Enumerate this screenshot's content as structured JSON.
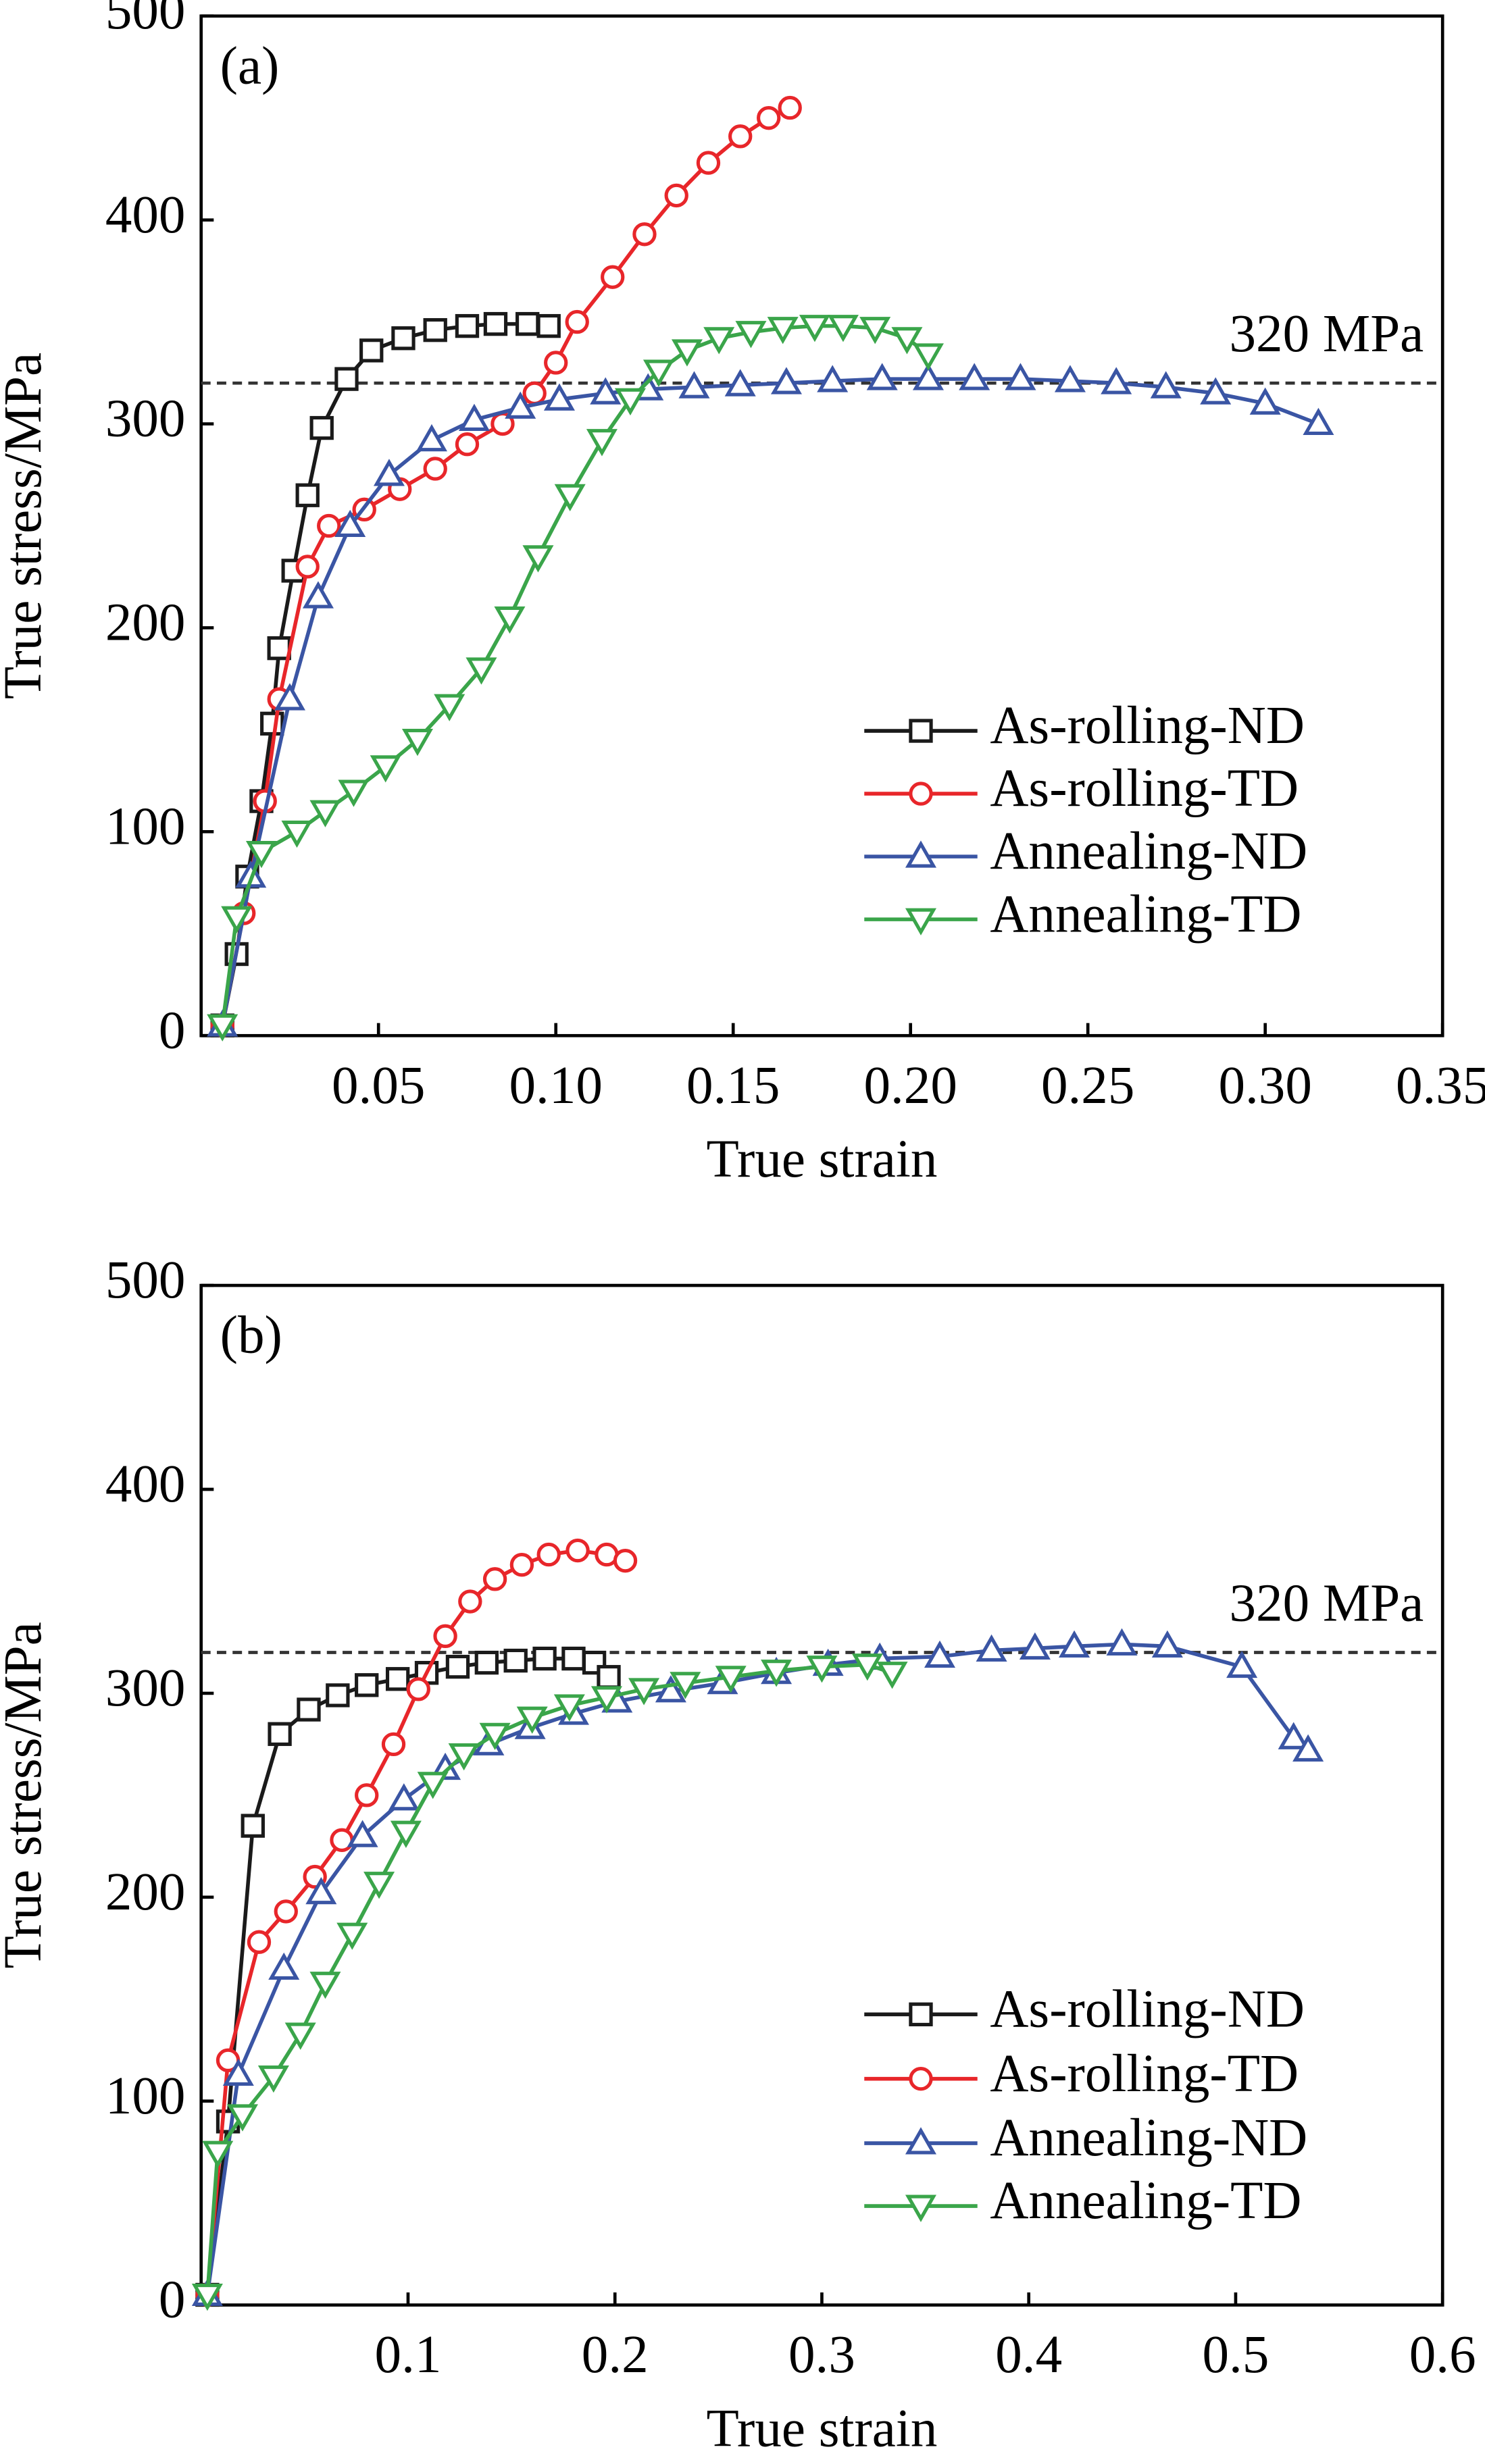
{
  "chart_data": [
    {
      "type": "line",
      "panel_label": "(a)",
      "x_label": "True strain",
      "y_label": "True stress/MPa",
      "xlim": [
        0,
        0.35
      ],
      "ylim": [
        0,
        500
      ],
      "xticks": [
        0.05,
        {
          "value": 0.1,
          "label": "0.10"
        },
        0.15,
        {
          "value": 0.2,
          "label": "0.20"
        },
        0.25,
        {
          "value": 0.3,
          "label": "0.30"
        },
        0.35
      ],
      "yticks": [
        0,
        100,
        200,
        300,
        400,
        500
      ],
      "hline": {
        "value": 320,
        "label": "320 MPa"
      },
      "legend": "lower right",
      "series": [
        {
          "name": "As-rolling-ND",
          "color": "#1a1a1a",
          "marker": "square",
          "x": [
            0.006,
            0.01,
            0.013,
            0.017,
            0.02,
            0.022,
            0.026,
            0.03,
            0.034,
            0.041,
            0.048,
            0.057,
            0.066,
            0.075,
            0.083,
            0.092,
            0.098
          ],
          "values": [
            5,
            40,
            78,
            115,
            153,
            190,
            228,
            265,
            298,
            322,
            336,
            342,
            346,
            348,
            349,
            349,
            348
          ]
        },
        {
          "name": "As-rolling-TD",
          "color": "#e8262a",
          "marker": "circle",
          "x": [
            0.006,
            0.012,
            0.018,
            0.022,
            0.03,
            0.036,
            0.046,
            0.056,
            0.066,
            0.075,
            0.085,
            0.094,
            0.1,
            0.106,
            0.116,
            0.125,
            0.134,
            0.143,
            0.152,
            0.16,
            0.166
          ],
          "values": [
            5,
            60,
            115,
            165,
            230,
            250,
            258,
            268,
            278,
            290,
            300,
            315,
            330,
            350,
            372,
            393,
            412,
            428,
            441,
            450,
            455
          ]
        },
        {
          "name": "Annealing-ND",
          "color": "#3a55a4",
          "marker": "triangle-up",
          "x": [
            0.006,
            0.014,
            0.025,
            0.033,
            0.042,
            0.053,
            0.065,
            0.077,
            0.09,
            0.101,
            0.114,
            0.126,
            0.139,
            0.152,
            0.165,
            0.178,
            0.192,
            0.205,
            0.218,
            0.231,
            0.245,
            0.258,
            0.272,
            0.286,
            0.3,
            0.315
          ],
          "values": [
            5,
            78,
            165,
            215,
            250,
            275,
            292,
            302,
            308,
            312,
            315,
            317,
            318,
            319,
            320,
            321,
            322,
            322,
            322,
            322,
            321,
            320,
            318,
            315,
            310,
            300
          ]
        },
        {
          "name": "Annealing-TD",
          "color": "#3aa54a",
          "marker": "triangle-down",
          "x": [
            0.006,
            0.01,
            0.017,
            0.027,
            0.035,
            0.043,
            0.052,
            0.061,
            0.07,
            0.079,
            0.087,
            0.095,
            0.104,
            0.113,
            0.121,
            0.129,
            0.137,
            0.146,
            0.155,
            0.164,
            0.173,
            0.181,
            0.19,
            0.199,
            0.205
          ],
          "values": [
            5,
            58,
            90,
            100,
            110,
            120,
            132,
            145,
            162,
            180,
            205,
            235,
            265,
            292,
            312,
            326,
            336,
            342,
            345,
            347,
            348,
            348,
            347,
            342,
            334
          ]
        }
      ]
    },
    {
      "type": "line",
      "panel_label": "(b)",
      "x_label": "True strain",
      "y_label": "True stress/MPa",
      "xlim": [
        0,
        0.6
      ],
      "ylim": [
        0,
        500
      ],
      "xticks": [
        0.1,
        0.2,
        0.3,
        0.4,
        0.5,
        0.6
      ],
      "yticks": [
        0,
        100,
        200,
        300,
        400,
        500
      ],
      "hline": {
        "value": 320,
        "label": "320 MPa"
      },
      "legend": "lower right",
      "series": [
        {
          "name": "As-rolling-ND",
          "color": "#1a1a1a",
          "marker": "square",
          "x": [
            0.003,
            0.013,
            0.025,
            0.038,
            0.052,
            0.066,
            0.08,
            0.095,
            0.109,
            0.124,
            0.138,
            0.152,
            0.166,
            0.18,
            0.19,
            0.197
          ],
          "values": [
            5,
            90,
            235,
            280,
            292,
            299,
            304,
            307,
            310,
            313,
            315,
            316,
            317,
            317,
            315,
            308
          ]
        },
        {
          "name": "As-rolling-TD",
          "color": "#e8262a",
          "marker": "circle",
          "x": [
            0.003,
            0.013,
            0.028,
            0.041,
            0.055,
            0.068,
            0.08,
            0.093,
            0.105,
            0.118,
            0.13,
            0.142,
            0.155,
            0.168,
            0.182,
            0.196,
            0.205
          ],
          "values": [
            5,
            120,
            178,
            193,
            210,
            228,
            250,
            275,
            302,
            328,
            345,
            356,
            363,
            368,
            370,
            368,
            365
          ]
        },
        {
          "name": "Annealing-ND",
          "color": "#3a55a4",
          "marker": "triangle-up",
          "x": [
            0.003,
            0.018,
            0.04,
            0.058,
            0.078,
            0.098,
            0.118,
            0.139,
            0.159,
            0.18,
            0.201,
            0.227,
            0.252,
            0.278,
            0.303,
            0.328,
            0.357,
            0.382,
            0.403,
            0.422,
            0.445,
            0.467,
            0.503,
            0.528,
            0.535
          ],
          "values": [
            5,
            113,
            165,
            202,
            230,
            248,
            263,
            275,
            283,
            290,
            296,
            301,
            305,
            310,
            314,
            317,
            318,
            321,
            322,
            323,
            324,
            323,
            313,
            278,
            272
          ]
        },
        {
          "name": "Annealing-TD",
          "color": "#3aa54a",
          "marker": "triangle-down",
          "x": [
            0.003,
            0.008,
            0.02,
            0.035,
            0.048,
            0.06,
            0.073,
            0.086,
            0.099,
            0.112,
            0.127,
            0.142,
            0.16,
            0.178,
            0.196,
            0.214,
            0.234,
            0.256,
            0.278,
            0.3,
            0.322,
            0.334
          ],
          "values": [
            5,
            75,
            93,
            112,
            133,
            158,
            182,
            207,
            232,
            256,
            270,
            280,
            288,
            294,
            298,
            302,
            305,
            308,
            311,
            313,
            314,
            310
          ]
        }
      ]
    }
  ]
}
